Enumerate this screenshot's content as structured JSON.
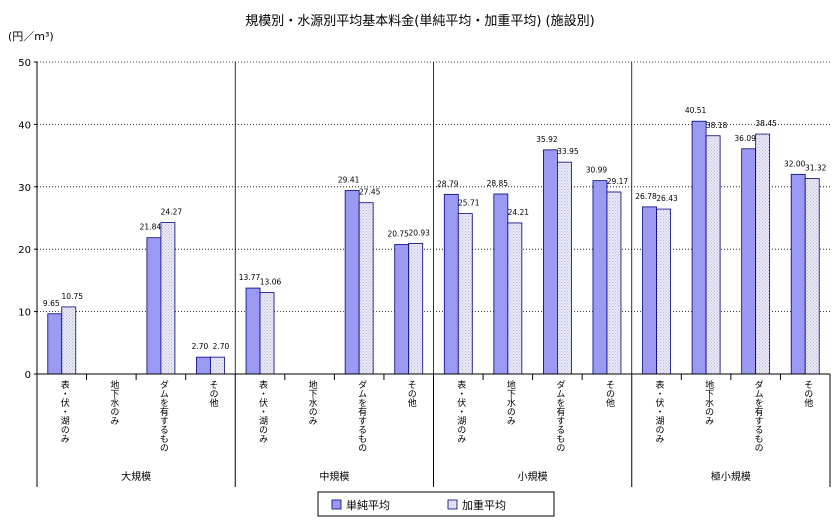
{
  "chart_data": {
    "type": "bar",
    "title": "規模別・水源別平均基本料金(単純平均・加重平均) (施設別)",
    "ylabel": "(円／m³)",
    "ylim": [
      0,
      50
    ],
    "yticks": [
      0,
      10,
      20,
      30,
      40,
      50
    ],
    "grid": true,
    "legend_position": "bottom-center",
    "colors": {
      "series0": "#9a9af2",
      "series1": "#ebebf7",
      "hatch": "#b9b9dc",
      "edge": "#000080",
      "axis": "#000000",
      "grid": "#000000"
    },
    "groups": [
      {
        "label": "大規模",
        "categories": [
          "表・伏・湖のみ",
          "地下水のみ",
          "ダムを有するもの",
          "その他"
        ]
      },
      {
        "label": "中規模",
        "categories": [
          "表・伏・湖のみ",
          "地下水のみ",
          "ダムを有するもの",
          "その他"
        ]
      },
      {
        "label": "小規模",
        "categories": [
          "表・伏・湖のみ",
          "地下水のみ",
          "ダムを有するもの",
          "その他"
        ]
      },
      {
        "label": "極小規模",
        "categories": [
          "表・伏・湖のみ",
          "地下水のみ",
          "ダムを有するもの",
          "その他"
        ]
      }
    ],
    "series": [
      {
        "name": "単純平均",
        "values": [
          9.65,
          null,
          21.84,
          2.7,
          13.77,
          null,
          29.41,
          20.75,
          28.79,
          28.85,
          35.92,
          30.99,
          26.78,
          40.51,
          36.09,
          32.0
        ],
        "labels": [
          "9.65",
          "",
          "21.84",
          "2.70",
          "13.77",
          "",
          "29.41",
          "20.75",
          "28.79",
          "28.85",
          "35.92",
          "30.99",
          "26.78",
          "40.51",
          "36.09",
          "32.00"
        ]
      },
      {
        "name": "加重平均",
        "values": [
          10.75,
          null,
          24.27,
          2.7,
          13.06,
          null,
          27.45,
          20.93,
          25.71,
          24.21,
          33.95,
          29.17,
          26.43,
          38.18,
          38.45,
          31.32
        ],
        "labels": [
          "10.75",
          "",
          "24.27",
          "2.70",
          "13.06",
          "",
          "27.45",
          "20.93",
          "25.71",
          "24.21",
          "33.95",
          "29.17",
          "26.43",
          "38.18",
          "38.45",
          "31.32"
        ]
      }
    ]
  }
}
